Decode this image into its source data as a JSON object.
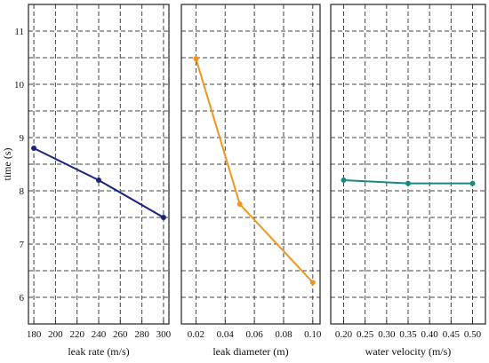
{
  "chart_data": [
    {
      "type": "line",
      "xlabel": "leak rate (m/s)",
      "ylabel": "time (s)",
      "x": [
        180,
        240,
        300
      ],
      "xlim": [
        175,
        305
      ],
      "xticks": [
        180,
        200,
        220,
        240,
        260,
        280,
        300
      ],
      "ylim": [
        5.5,
        11.5
      ],
      "yticks": [
        6,
        7,
        8,
        9,
        10,
        11
      ],
      "grid": true,
      "series": [
        {
          "values": [
            8.8,
            8.2,
            7.5
          ],
          "color": "#1a237e"
        }
      ]
    },
    {
      "type": "line",
      "xlabel": "leak diameter (m)",
      "x": [
        0.02,
        0.05,
        0.1
      ],
      "xlim": [
        0.01,
        0.105
      ],
      "xticks": [
        0.02,
        0.04,
        0.06,
        0.08,
        0.1
      ],
      "xtick_labels": [
        "0.02",
        "0.04",
        "0.06",
        "0.08",
        "0.10"
      ],
      "ylim": [
        5.5,
        11.5
      ],
      "grid": true,
      "series": [
        {
          "values": [
            10.48,
            7.75,
            6.28
          ],
          "color": "#f0961e"
        }
      ]
    },
    {
      "type": "line",
      "xlabel": "water velocity (m/s)",
      "x": [
        0.2,
        0.35,
        0.5
      ],
      "xlim": [
        0.17,
        0.53
      ],
      "xticks": [
        0.2,
        0.25,
        0.3,
        0.35,
        0.4,
        0.45,
        0.5
      ],
      "xtick_labels": [
        "0.20",
        "0.25",
        "0.30",
        "0.35",
        "0.40",
        "0.45",
        "0.50"
      ],
      "ylim": [
        5.5,
        11.5
      ],
      "grid": true,
      "series": [
        {
          "values": [
            8.2,
            8.14,
            8.14
          ],
          "color": "#1a8a80"
        }
      ]
    }
  ]
}
